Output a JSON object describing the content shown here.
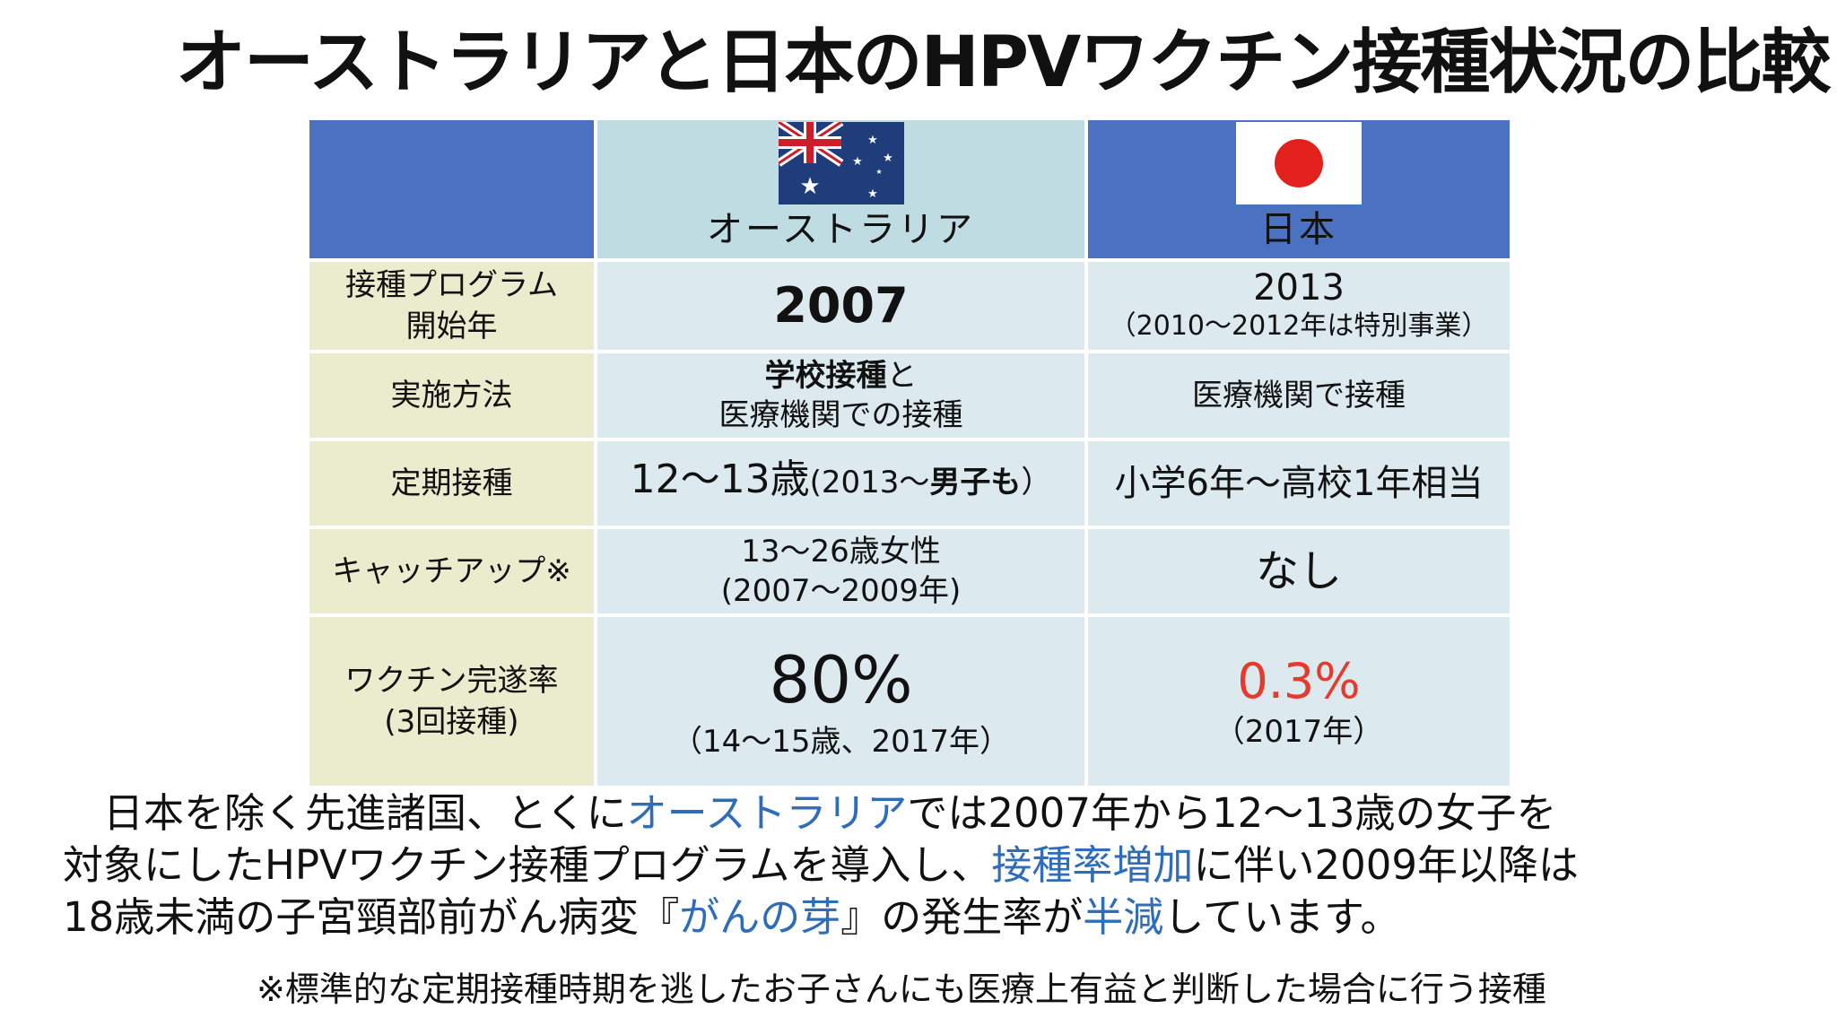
{
  "title": "オーストラリアと日本のHPVワクチン接種状況の比較",
  "header": {
    "australia": "オーストラリア",
    "japan": "日本",
    "australia_flag": "australia-flag",
    "japan_flag": "japan-flag"
  },
  "rows": [
    {
      "label_line1": "接種プログラム",
      "label_line2": "開始年",
      "au_main": "2007",
      "jp_line1": "2013",
      "jp_line2": "（2010～2012年は特別事業）"
    },
    {
      "label": "実施方法",
      "au_bold": "学校接種",
      "au_rest1": "と",
      "au_line2": "医療機関での接種",
      "jp": "医療機関で接種"
    },
    {
      "label": "定期接種",
      "au_main": "12～13歳",
      "au_paren_open": "(2013～",
      "au_paren_bold": "男子も",
      "au_paren_close": "）",
      "jp": "小学6年～高校1年相当"
    },
    {
      "label": "キャッチアップ※",
      "au_line1": "13～26歳女性",
      "au_line2": "(2007～2009年)",
      "jp": "なし"
    },
    {
      "label_line1": "ワクチン完遂率",
      "label_line2": "(3回接種)",
      "au_main": "80%",
      "au_sub": "（14～15歳、2017年）",
      "jp_main": "0.3%",
      "jp_sub": "（2017年）"
    }
  ],
  "paragraph": {
    "l1_a": "　日本を除く先進諸国、とくに",
    "l1_blue": "オーストラリア",
    "l1_b": "では2007年から12～13歳の女子を",
    "l2_a": "対象にしたHPVワクチン接種プログラムを導入し、",
    "l2_blue": "接種率増加",
    "l2_b": "に伴い2009年以降は",
    "l3_a": "18歳未満の子宮頸部前がん病変『",
    "l3_blue1": "がんの芽",
    "l3_b": "』の発生率が",
    "l3_blue2": "半減",
    "l3_c": "しています。"
  },
  "footnote": "※標準的な定期接種時期を逃したお子さんにも医療上有益と判断した場合に行う接種",
  "colors": {
    "header_blue": "#4b72c0",
    "au_header": "#bedce2",
    "label_bg": "#ebeccd",
    "value_bg": "#dce9ee",
    "accent_red": "#e53a2c",
    "text_blue": "#2f6db8"
  }
}
